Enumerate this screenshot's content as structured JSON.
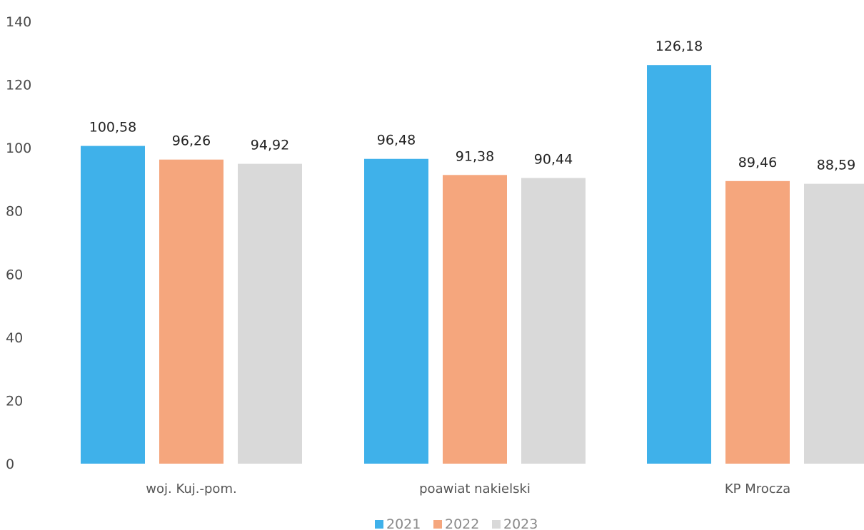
{
  "chart_data": {
    "type": "bar",
    "categories": [
      "woj. Kuj.-pom.",
      "poawiat nakielski",
      "KP Mrocza"
    ],
    "series": [
      {
        "name": "2021",
        "values": [
          100.58,
          96.48,
          126.18
        ],
        "labels": [
          "100,58",
          "96,48",
          "126,18"
        ],
        "color": "#3fb1ea"
      },
      {
        "name": "2022",
        "values": [
          96.26,
          91.38,
          89.46
        ],
        "labels": [
          "96,26",
          "91,38",
          "89,46"
        ],
        "color": "#f5a67d"
      },
      {
        "name": "2023",
        "values": [
          94.92,
          90.44,
          88.59
        ],
        "labels": [
          "94,92",
          "90,44",
          "88,59"
        ],
        "color": "#d9d9d9"
      }
    ],
    "yticks": [
      "0",
      "20",
      "40",
      "60",
      "80",
      "100",
      "120",
      "140"
    ],
    "ylim": [
      0,
      140
    ],
    "grid": false,
    "legend": "bottom-center"
  }
}
